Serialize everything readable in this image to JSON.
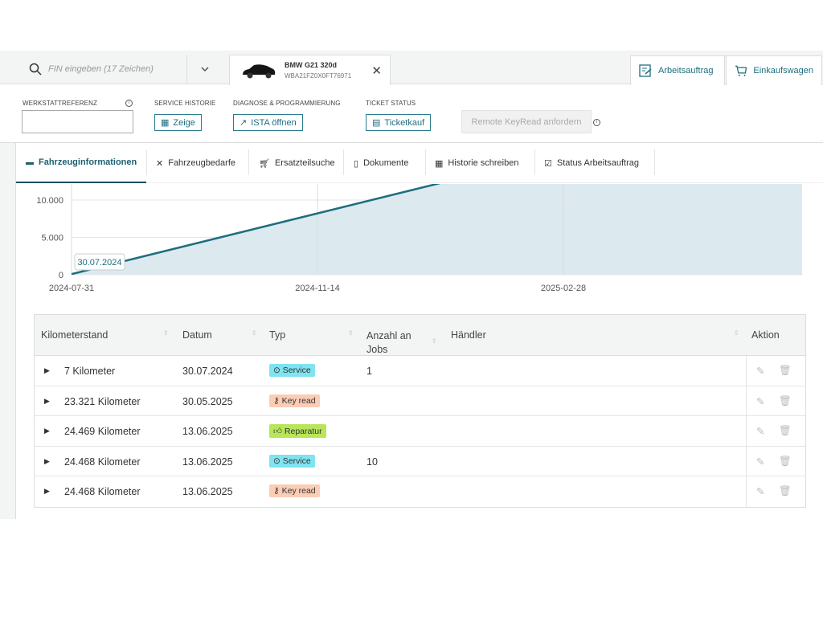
{
  "header": {
    "search_placeholder": "FIN eingeben (17 Zeichen)",
    "vehicle": {
      "model": "BMW G21 320d",
      "vin": "WBA21FZ0X0FT76971"
    },
    "right_tabs": [
      {
        "label": "Arbeitsauftrag",
        "icon": "work-order-icon"
      },
      {
        "label": "Einkaufswagen",
        "icon": "cart-icon"
      }
    ]
  },
  "toolbar": {
    "werkstattreferenz_label": "WERKSTATTREFERENZ",
    "werkstattreferenz_value": "",
    "service_historie_label": "SERVICE HISTORIE",
    "zeige_button": "Zeige",
    "diagnose_label": "DIAGNOSE & PROGRAMMIERUNG",
    "ista_button": "ISTA öffnen",
    "ticket_label": "TICKET STATUS",
    "ticket_button": "Ticketkauf",
    "remote_button": "Remote KeyRead anfordern"
  },
  "tabs": [
    {
      "label": "Fahrzeuginformationen",
      "icon": "car-icon",
      "active": true
    },
    {
      "label": "Fahrzeugbedarfe",
      "icon": "tools-icon"
    },
    {
      "label": "Ersatzteilsuche",
      "icon": "cart-icon"
    },
    {
      "label": "Dokumente",
      "icon": "document-icon"
    },
    {
      "label": "Historie schreiben",
      "icon": "history-icon"
    },
    {
      "label": "Status Arbeitsauftrag",
      "icon": "work-order-icon"
    }
  ],
  "chart_data": {
    "type": "area",
    "x_ticks": [
      "2024-07-31",
      "2024-11-14",
      "2025-02-28"
    ],
    "y_ticks": [
      "0",
      "5.000",
      "10.000"
    ],
    "tooltip": "30.07.2024",
    "points": [
      {
        "x": "2024-07-30",
        "y": 7
      },
      {
        "x": "2025-05-30",
        "y": 23321
      },
      {
        "x": "2025-06-13",
        "y": 24468
      }
    ],
    "line_color": "#1d6e7e",
    "fill_color": "#dce9ef",
    "grid": true
  },
  "table": {
    "columns": [
      "Kilometerstand",
      "Datum",
      "Typ",
      "Anzahl an Jobs",
      "Händler",
      "Aktion"
    ],
    "rows": [
      {
        "km": "7 Kilometer",
        "date": "30.07.2024",
        "type": "Service",
        "jobs": "1",
        "dealer": ""
      },
      {
        "km": "23.321 Kilometer",
        "date": "30.05.2025",
        "type": "Key read",
        "jobs": "",
        "dealer": ""
      },
      {
        "km": "24.469 Kilometer",
        "date": "13.06.2025",
        "type": "Reparatur",
        "jobs": "",
        "dealer": ""
      },
      {
        "km": "24.468 Kilometer",
        "date": "13.06.2025",
        "type": "Service",
        "jobs": "10",
        "dealer": ""
      },
      {
        "km": "24.468 Kilometer",
        "date": "13.06.2025",
        "type": "Key read",
        "jobs": "",
        "dealer": ""
      }
    ],
    "type_colors": {
      "Service": "#7fe3f0",
      "Key read": "#fbcdb5",
      "Reparatur": "#b9e55a"
    }
  }
}
